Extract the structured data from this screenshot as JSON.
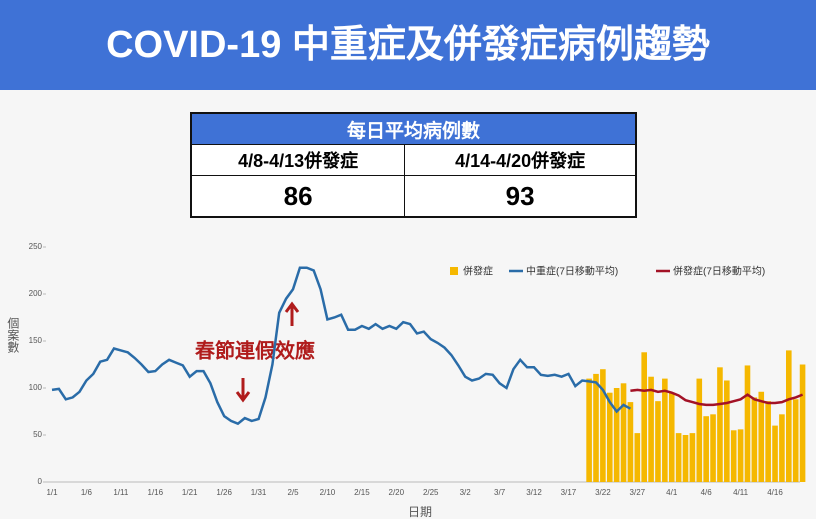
{
  "header": {
    "title": "COVID-19 中重症及併發症病例趨勢"
  },
  "table": {
    "title": "每日平均病例數",
    "columns": [
      "4/8-4/13併發症",
      "4/14-4/20併發症"
    ],
    "values": [
      86,
      93
    ]
  },
  "chart_data": {
    "type": "combo",
    "annotation": "春節連假效應",
    "ylabel": "個案數",
    "xlabel": "日期",
    "ylim": [
      0,
      250
    ],
    "yticks": [
      0,
      50,
      100,
      150,
      200,
      250
    ],
    "grid": false,
    "legend": "top-right",
    "categories": [
      "1/1",
      null,
      null,
      null,
      null,
      "1/6",
      null,
      null,
      null,
      null,
      "1/11",
      null,
      null,
      null,
      null,
      "1/16",
      null,
      null,
      null,
      null,
      "1/21",
      null,
      null,
      null,
      null,
      "1/26",
      null,
      null,
      null,
      null,
      "1/31",
      null,
      null,
      null,
      null,
      "2/5",
      null,
      null,
      null,
      null,
      "2/10",
      null,
      null,
      null,
      null,
      "2/15",
      null,
      null,
      null,
      null,
      "2/20",
      null,
      null,
      null,
      null,
      "2/25",
      null,
      null,
      null,
      null,
      "3/2",
      null,
      null,
      null,
      null,
      "3/7",
      null,
      null,
      null,
      null,
      "3/12",
      null,
      null,
      null,
      null,
      "3/17",
      null,
      null,
      null,
      null,
      "3/22",
      null,
      null,
      null,
      null,
      "3/27",
      null,
      null,
      null,
      null,
      "4/1",
      null,
      null,
      null,
      null,
      "4/6",
      null,
      null,
      null,
      null,
      "4/11",
      null,
      null,
      null,
      null,
      "4/16",
      null,
      null,
      null,
      null
    ],
    "series": [
      {
        "name": "併發症",
        "type": "bar",
        "color": "#f5b800",
        "values": [
          null,
          null,
          null,
          null,
          null,
          null,
          null,
          null,
          null,
          null,
          null,
          null,
          null,
          null,
          null,
          null,
          null,
          null,
          null,
          null,
          null,
          null,
          null,
          null,
          null,
          null,
          null,
          null,
          null,
          null,
          null,
          null,
          null,
          null,
          null,
          null,
          null,
          null,
          null,
          null,
          null,
          null,
          null,
          null,
          null,
          null,
          null,
          null,
          null,
          null,
          null,
          null,
          null,
          null,
          null,
          null,
          null,
          null,
          null,
          null,
          null,
          null,
          null,
          null,
          null,
          null,
          null,
          null,
          null,
          null,
          null,
          null,
          null,
          null,
          null,
          null,
          null,
          null,
          110,
          115,
          120,
          95,
          100,
          105,
          85,
          52,
          138,
          112,
          86,
          110,
          95,
          52,
          50,
          52,
          110,
          70,
          72,
          122,
          108,
          55,
          56,
          124,
          90,
          96,
          86,
          60,
          72,
          140,
          88,
          125
        ]
      },
      {
        "name": "中重症(7日移動平均)",
        "type": "line",
        "color": "#2a6ca8",
        "values": [
          98,
          99,
          88,
          90,
          96,
          108,
          115,
          128,
          130,
          142,
          140,
          138,
          132,
          125,
          117,
          118,
          125,
          130,
          127,
          124,
          112,
          118,
          118,
          105,
          85,
          70,
          65,
          62,
          68,
          65,
          67,
          90,
          125,
          180,
          195,
          205,
          228,
          228,
          225,
          205,
          173,
          175,
          178,
          162,
          162,
          166,
          163,
          168,
          163,
          166,
          163,
          170,
          168,
          158,
          160,
          152,
          148,
          143,
          135,
          124,
          112,
          108,
          110,
          115,
          114,
          105,
          100,
          120,
          130,
          122,
          122,
          114,
          113,
          114,
          112,
          115,
          102,
          108,
          107,
          106,
          98,
          85,
          75,
          82,
          78,
          null,
          null,
          null,
          null,
          null,
          null,
          null,
          null,
          null,
          null,
          null,
          null,
          null,
          null,
          null,
          null,
          null,
          null,
          null,
          null,
          null,
          null,
          null,
          null,
          null
        ]
      },
      {
        "name": "併發症(7日移動平均)",
        "type": "line",
        "color": "#a31226",
        "values": [
          null,
          null,
          null,
          null,
          null,
          null,
          null,
          null,
          null,
          null,
          null,
          null,
          null,
          null,
          null,
          null,
          null,
          null,
          null,
          null,
          null,
          null,
          null,
          null,
          null,
          null,
          null,
          null,
          null,
          null,
          null,
          null,
          null,
          null,
          null,
          null,
          null,
          null,
          null,
          null,
          null,
          null,
          null,
          null,
          null,
          null,
          null,
          null,
          null,
          null,
          null,
          null,
          null,
          null,
          null,
          null,
          null,
          null,
          null,
          null,
          null,
          null,
          null,
          null,
          null,
          null,
          null,
          null,
          null,
          null,
          null,
          null,
          null,
          null,
          null,
          null,
          null,
          null,
          null,
          null,
          null,
          null,
          null,
          null,
          97,
          98,
          97,
          98,
          96,
          97,
          95,
          92,
          87,
          85,
          83,
          82,
          82,
          83,
          84,
          86,
          88,
          93,
          88,
          86,
          84,
          84,
          85,
          88,
          90,
          93
        ]
      }
    ]
  }
}
